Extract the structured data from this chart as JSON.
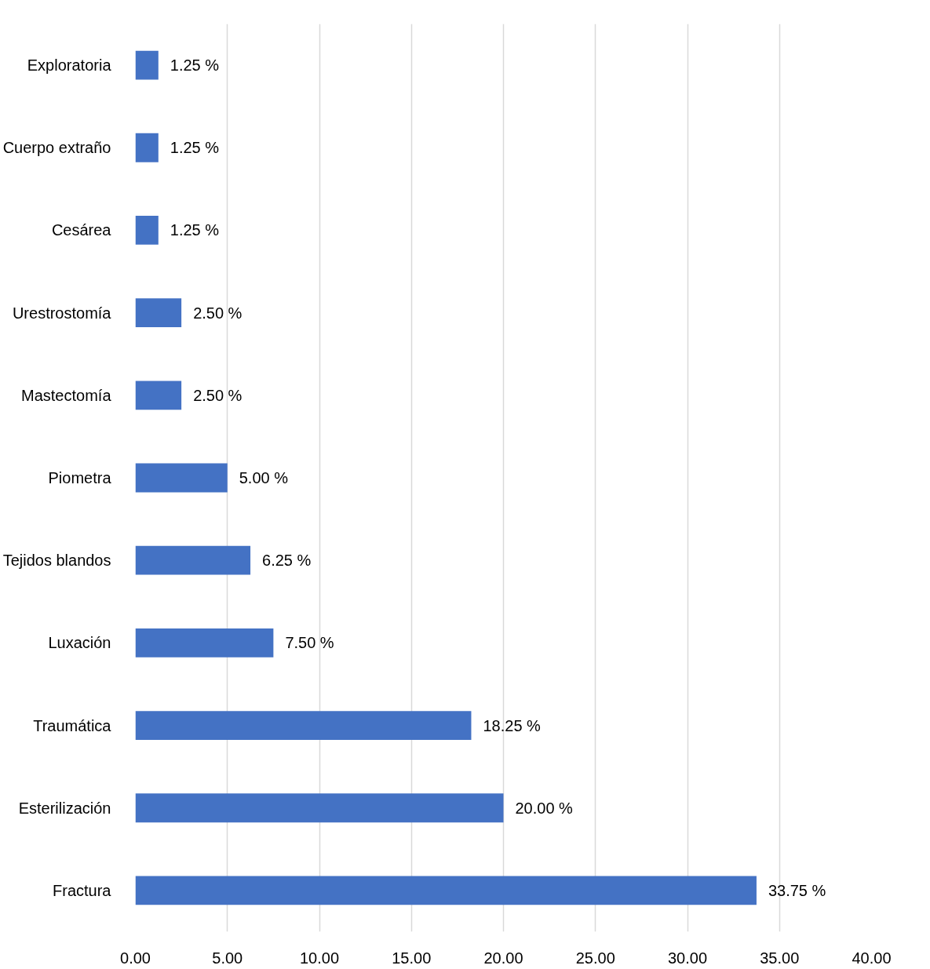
{
  "chart_data": {
    "type": "bar",
    "orientation": "horizontal",
    "categories": [
      "Exploratoria",
      "Cuerpo extraño",
      "Cesárea",
      "Urestrostomía",
      "Mastectomía",
      "Piometra",
      "Tejidos blandos",
      "Luxación",
      "Traumática",
      "Esterilización",
      "Fractura"
    ],
    "values": [
      1.25,
      1.25,
      1.25,
      2.5,
      2.5,
      5.0,
      6.25,
      7.5,
      18.25,
      20.0,
      33.75
    ],
    "value_labels": [
      "1.25 %",
      "1.25 %",
      "1.25 %",
      "2.50 %",
      "2.50 %",
      "5.00 %",
      "6.25 %",
      "7.50 %",
      "18.25 %",
      "20.00 %",
      "33.75 %"
    ],
    "color": "#4472c4",
    "xlim": [
      0,
      40
    ],
    "xticks": [
      {
        "value": 0,
        "label": "0.00"
      },
      {
        "value": 5,
        "label": "5.00"
      },
      {
        "value": 10,
        "label": "10.00"
      },
      {
        "value": 15,
        "label": "15.00"
      },
      {
        "value": 20,
        "label": "20.00"
      },
      {
        "value": 25,
        "label": "25.00"
      },
      {
        "value": 30,
        "label": "30.00"
      },
      {
        "value": 35,
        "label": "35.00"
      },
      {
        "value": 40,
        "label": "40.00"
      }
    ],
    "grid": "x"
  }
}
